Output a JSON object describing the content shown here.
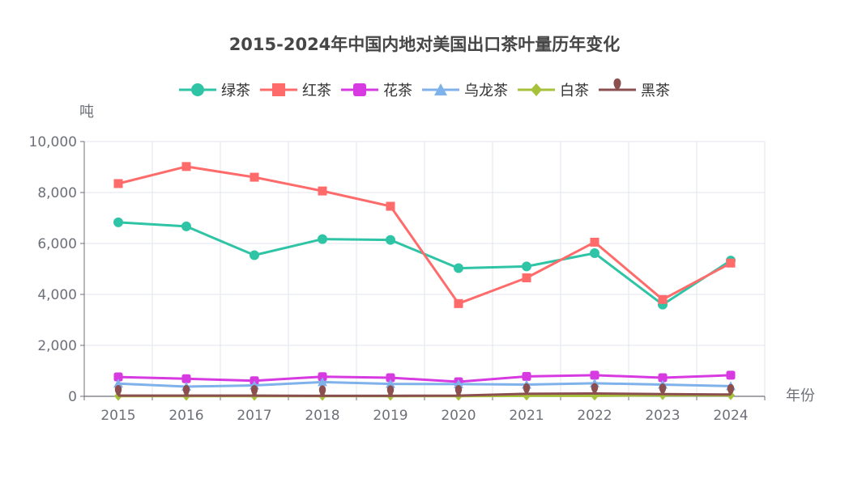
{
  "chart_data": {
    "type": "line",
    "title": "2015-2024年中国内地对美国出口茶叶量历年变化",
    "xlabel": "年份",
    "ylabel": "吨",
    "categories": [
      "2015",
      "2016",
      "2017",
      "2018",
      "2019",
      "2020",
      "2021",
      "2022",
      "2023",
      "2024"
    ],
    "ylim": [
      0,
      10000
    ],
    "yticks": [
      "0",
      "2,000",
      "4,000",
      "6,000",
      "8,000",
      "10,000"
    ],
    "grid": true,
    "legend_position": "top-center",
    "series": [
      {
        "name": "绿茶",
        "color": "#2ec4a5",
        "marker": "circle",
        "values": [
          6830,
          6670,
          5540,
          6170,
          6140,
          5030,
          5100,
          5620,
          3600,
          5330
        ]
      },
      {
        "name": "红茶",
        "color": "#ff6b6b",
        "marker": "square",
        "values": [
          8350,
          9020,
          8600,
          8060,
          7460,
          3640,
          4650,
          6050,
          3800,
          5230
        ]
      },
      {
        "name": "花茶",
        "color": "#d63ae0",
        "marker": "roundrect",
        "values": [
          760,
          690,
          610,
          770,
          730,
          570,
          780,
          830,
          730,
          830
        ]
      },
      {
        "name": "乌龙茶",
        "color": "#7fb2ea",
        "marker": "triangle",
        "values": [
          500,
          380,
          430,
          560,
          490,
          480,
          460,
          510,
          460,
          400
        ]
      },
      {
        "name": "白茶",
        "color": "#a6c13a",
        "marker": "diamond",
        "values": [
          10,
          10,
          10,
          10,
          10,
          10,
          20,
          20,
          40,
          40
        ]
      },
      {
        "name": "黑茶",
        "color": "#8c4f4f",
        "marker": "pin",
        "values": [
          30,
          30,
          30,
          20,
          20,
          30,
          100,
          110,
          90,
          70
        ]
      }
    ]
  }
}
